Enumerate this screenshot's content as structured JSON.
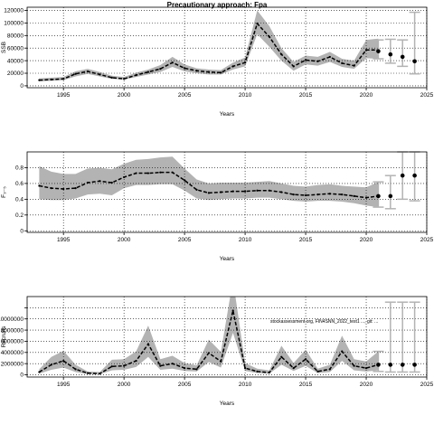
{
  "title": "Precautionary approach: Fpa",
  "watermark": "stockassessment.org, FIN4SNN_2022_test1 ..., git: ...",
  "colors": {
    "band": "#b3b3b3",
    "line": "#000000",
    "forecast": "#b3b3b3",
    "grid": "#000000"
  },
  "chart_data": [
    {
      "type": "line",
      "title": "Precautionary approach: Fpa",
      "xlabel": "Years",
      "ylabel": "SSB",
      "xlim": [
        1992,
        2025
      ],
      "ylim": [
        -3000,
        125000
      ],
      "xticks": [
        1995,
        2000,
        2005,
        2010,
        2015,
        2020,
        2025
      ],
      "yticks": [
        0,
        20000,
        40000,
        60000,
        80000,
        100000,
        120000
      ],
      "grid": true,
      "series": [
        {
          "x": [
            1993,
            1994,
            1995,
            1996,
            1997,
            1998,
            1999,
            2000,
            2001,
            2002,
            2003,
            2004,
            2005,
            2006,
            2007,
            2008,
            2009,
            2010,
            2011,
            2012,
            2013,
            2014,
            2015,
            2016,
            2017,
            2018,
            2019,
            2020,
            2021
          ],
          "values": [
            9000,
            10000,
            11000,
            19000,
            23000,
            18000,
            13000,
            11000,
            17000,
            22000,
            27000,
            37000,
            28000,
            24000,
            22000,
            21000,
            31000,
            37000,
            99000,
            78000,
            50000,
            31000,
            41000,
            39000,
            46000,
            36000,
            32000,
            57000,
            57000
          ],
          "lower": [
            7000,
            8000,
            9000,
            15000,
            19000,
            15000,
            11000,
            10000,
            14000,
            18000,
            22000,
            30000,
            23000,
            20000,
            18000,
            18000,
            26000,
            31000,
            82000,
            62000,
            40000,
            24000,
            34000,
            32000,
            38000,
            30000,
            27000,
            44000,
            43000
          ],
          "upper": [
            12000,
            13000,
            14000,
            23000,
            27000,
            22000,
            16000,
            14000,
            21000,
            26000,
            33000,
            46000,
            34000,
            28000,
            26000,
            25000,
            37000,
            45000,
            120000,
            95000,
            60000,
            38000,
            48000,
            46000,
            54000,
            43000,
            40000,
            73000,
            75000
          ]
        }
      ],
      "forecast": {
        "x": [
          2021,
          2022,
          2023,
          2024
        ],
        "values": [
          55000,
          50000,
          46000,
          39000
        ],
        "lower": [
          43000,
          36000,
          31000,
          19000
        ],
        "upper": [
          73000,
          74000,
          73000,
          117000
        ]
      }
    },
    {
      "type": "line",
      "xlabel": "Years",
      "ylabel": "F₃₋₅",
      "xlim": [
        1992,
        2025
      ],
      "ylim": [
        -0.02,
        1.0
      ],
      "xticks": [
        1995,
        2000,
        2005,
        2010,
        2015,
        2020,
        2025
      ],
      "yticks": [
        0.0,
        0.2,
        0.4,
        0.6,
        0.8
      ],
      "grid": true,
      "series": [
        {
          "x": [
            1993,
            1994,
            1995,
            1996,
            1997,
            1998,
            1999,
            2000,
            2001,
            2002,
            2003,
            2004,
            2005,
            2006,
            2007,
            2008,
            2009,
            2010,
            2011,
            2012,
            2013,
            2014,
            2015,
            2016,
            2017,
            2018,
            2019,
            2020,
            2021
          ],
          "values": [
            0.57,
            0.54,
            0.53,
            0.54,
            0.61,
            0.63,
            0.61,
            0.68,
            0.73,
            0.73,
            0.74,
            0.74,
            0.64,
            0.52,
            0.48,
            0.49,
            0.5,
            0.5,
            0.51,
            0.51,
            0.49,
            0.46,
            0.45,
            0.46,
            0.47,
            0.46,
            0.44,
            0.42,
            0.44
          ],
          "lower": [
            0.4,
            0.39,
            0.39,
            0.41,
            0.46,
            0.47,
            0.45,
            0.54,
            0.58,
            0.58,
            0.59,
            0.59,
            0.51,
            0.41,
            0.39,
            0.4,
            0.41,
            0.41,
            0.42,
            0.42,
            0.4,
            0.38,
            0.37,
            0.38,
            0.38,
            0.37,
            0.35,
            0.32,
            0.3
          ],
          "upper": [
            0.82,
            0.75,
            0.72,
            0.72,
            0.79,
            0.8,
            0.78,
            0.85,
            0.9,
            0.91,
            0.93,
            0.94,
            0.79,
            0.65,
            0.6,
            0.61,
            0.61,
            0.61,
            0.62,
            0.63,
            0.6,
            0.57,
            0.56,
            0.58,
            0.59,
            0.57,
            0.56,
            0.55,
            0.62
          ]
        }
      ],
      "forecast": {
        "x": [
          2021,
          2022,
          2023,
          2024
        ],
        "values": [
          0.44,
          0.44,
          0.7,
          0.7
        ],
        "lower": [
          0.3,
          0.28,
          0.4,
          0.38
        ],
        "upper": [
          0.62,
          0.7,
          1.0,
          1.0
        ]
      }
    },
    {
      "type": "line",
      "xlabel": "Years",
      "ylabel": "Recruits",
      "xlim": [
        1992,
        2025
      ],
      "ylim": [
        -400000,
        14000000
      ],
      "xticks": [
        1995,
        2000,
        2005,
        2010,
        2015,
        2020,
        2025
      ],
      "yticks": [
        0,
        2000000,
        4000000,
        6000000,
        8000000,
        10000000,
        12000000
      ],
      "ytick_labels": [
        "0",
        "2000000",
        "4000000",
        "6000000",
        "8000000",
        "10000000",
        ""
      ],
      "grid": true,
      "series": [
        {
          "x": [
            1993,
            1994,
            1995,
            1996,
            1997,
            1998,
            1999,
            2000,
            2001,
            2002,
            2003,
            2004,
            2005,
            2006,
            2007,
            2008,
            2009,
            2010,
            2011,
            2012,
            2013,
            2014,
            2015,
            2016,
            2017,
            2018,
            2019,
            2020,
            2021
          ],
          "values": [
            500000,
            1800000,
            2500000,
            1000000,
            300000,
            200000,
            1500000,
            1600000,
            2500000,
            5500000,
            1600000,
            2000000,
            1200000,
            1000000,
            3900000,
            2400000,
            11500000,
            1200000,
            600000,
            400000,
            3200000,
            1200000,
            2800000,
            600000,
            1000000,
            4200000,
            1600000,
            1200000,
            1800000
          ],
          "lower": [
            200000,
            900000,
            1300000,
            500000,
            100000,
            100000,
            800000,
            900000,
            1400000,
            3200000,
            900000,
            1100000,
            700000,
            600000,
            2300000,
            1300000,
            7500000,
            700000,
            300000,
            200000,
            1800000,
            700000,
            1600000,
            300000,
            500000,
            2500000,
            800000,
            600000,
            800000
          ],
          "upper": [
            1000000,
            3200000,
            4300000,
            1800000,
            600000,
            500000,
            2700000,
            2800000,
            4200000,
            8800000,
            2800000,
            3400000,
            2100000,
            1700000,
            6300000,
            4100000,
            17000000,
            2100000,
            1100000,
            800000,
            5200000,
            2100000,
            4500000,
            1100000,
            1800000,
            7000000,
            2800000,
            2400000,
            4200000
          ]
        }
      ],
      "forecast": {
        "x": [
          2021,
          2022,
          2023,
          2024
        ],
        "values": [
          1800000,
          1800000,
          1800000,
          1800000
        ],
        "lower": [
          600000,
          500000,
          500000,
          500000
        ],
        "upper": [
          4200000,
          13000000,
          13000000,
          13000000
        ]
      }
    }
  ]
}
